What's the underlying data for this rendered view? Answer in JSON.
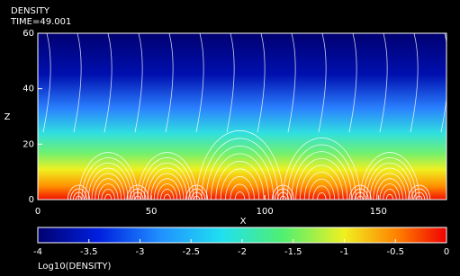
{
  "chart_data": {
    "type": "heatmap",
    "title": "DENSITY",
    "subtitle": "TIME=49.001",
    "x_label": "X",
    "y_label": "Z",
    "xlim": [
      0,
      180
    ],
    "xticks": [
      0,
      50,
      100,
      150
    ],
    "ylim": [
      0,
      60
    ],
    "yticks": [
      0,
      20,
      40,
      60
    ],
    "colorbar": {
      "label": "Log10(DENSITY)",
      "lim": [
        -4,
        0
      ],
      "ticks": [
        -4,
        -3.5,
        -3,
        -2.5,
        -2,
        -1.5,
        -1,
        -0.5,
        0
      ]
    }
  }
}
